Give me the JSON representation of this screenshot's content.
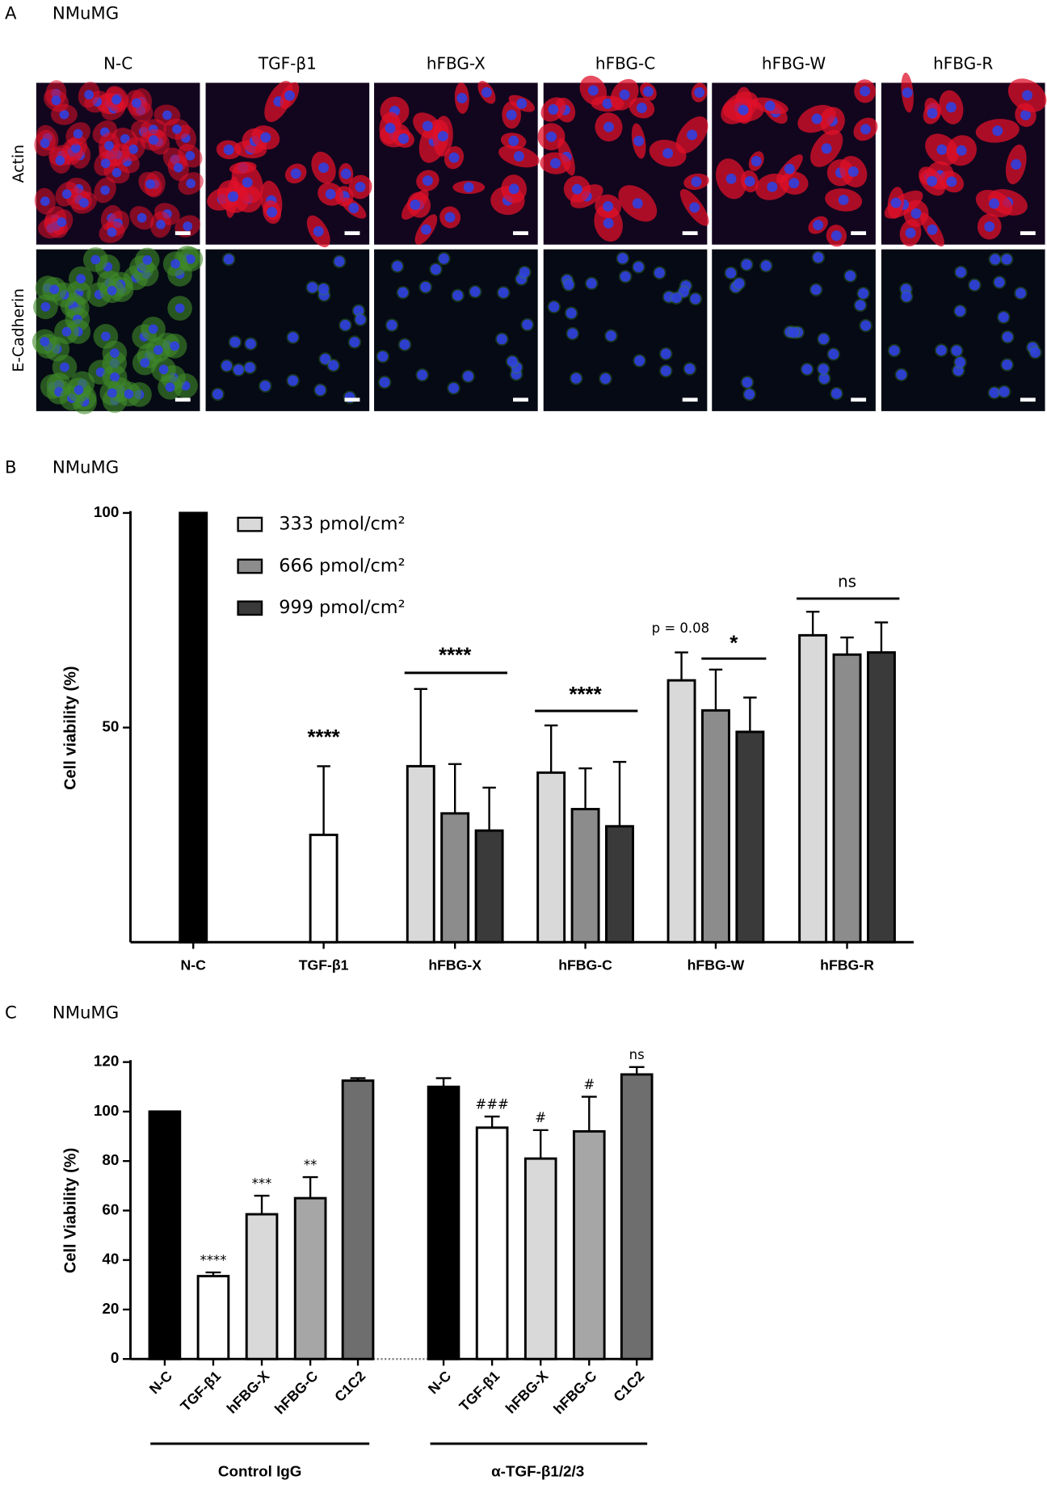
{
  "panel_a": {
    "panel_label": "A",
    "title": "NMuMG",
    "columns": [
      "N-C",
      "TGF-β1",
      "hFBG-X",
      "hFBG-C",
      "hFBG-W",
      "hFBG-R"
    ],
    "rows": [
      "Actin",
      "E-Cadherin"
    ]
  },
  "chart_data": [
    {
      "type": "bar",
      "panel_label": "B",
      "title": "NMuMG",
      "y_label": "Cell viability (%)",
      "categories": [
        "N-C",
        "TGF-β1",
        "hFBG-X",
        "hFBG-C",
        "hFBG-W",
        "hFBG-R"
      ],
      "controls": {
        "values": [
          100,
          25,
          null,
          null,
          null,
          null
        ],
        "errors": [
          null,
          16,
          null,
          null,
          null,
          null
        ],
        "colors": [
          "#000000",
          "#ffffff",
          null,
          null,
          null,
          null
        ]
      },
      "series": [
        {
          "name": "333 pmol/cm²",
          "color": "#d9d9d9",
          "values": [
            null,
            null,
            41,
            39.5,
            61,
            71.5
          ],
          "errors": [
            null,
            null,
            18,
            11,
            6.5,
            5.5
          ]
        },
        {
          "name": "666 pmol/cm²",
          "color": "#8c8c8c",
          "values": [
            null,
            null,
            30,
            31,
            54,
            67
          ],
          "errors": [
            null,
            null,
            11.5,
            9.5,
            9.5,
            4
          ]
        },
        {
          "name": "999 pmol/cm²",
          "color": "#3a3a3a",
          "values": [
            null,
            null,
            26,
            27,
            49,
            67.5
          ],
          "errors": [
            null,
            null,
            10,
            15,
            8,
            7
          ]
        }
      ],
      "annotations": [
        "****",
        "****",
        "****",
        "p = 0.08",
        "*",
        "ns"
      ],
      "ylim": [
        0,
        100
      ],
      "yticks": [
        50,
        100
      ]
    },
    {
      "type": "bar",
      "panel_label": "C",
      "title": "NMuMG",
      "y_label": "Cell Viability (%)",
      "categories": [
        "N-C",
        "TGF-β1",
        "hFBG-X",
        "hFBG-C",
        "C1C2",
        "N-C",
        "TGF-β1",
        "hFBG-X",
        "hFBG-C",
        "C1C2"
      ],
      "values": [
        100,
        33.5,
        58.5,
        65,
        112.5,
        110,
        93.5,
        81,
        92,
        115
      ],
      "errors": [
        0,
        1.5,
        7.5,
        8.5,
        1,
        3.5,
        4.5,
        11.5,
        14,
        3
      ],
      "colors": [
        "#000000",
        "#ffffff",
        "#d9d9d9",
        "#a6a6a6",
        "#6e6e6e",
        "#000000",
        "#ffffff",
        "#d9d9d9",
        "#a6a6a6",
        "#6e6e6e"
      ],
      "significance": [
        null,
        "****",
        "***",
        "**",
        null,
        null,
        "###",
        "#",
        "#",
        "ns"
      ],
      "groups": [
        "Control IgG",
        "α-TGF-β1/2/3"
      ],
      "ylim": [
        0,
        120
      ],
      "yticks": [
        0,
        20,
        40,
        60,
        80,
        100,
        120
      ]
    }
  ]
}
